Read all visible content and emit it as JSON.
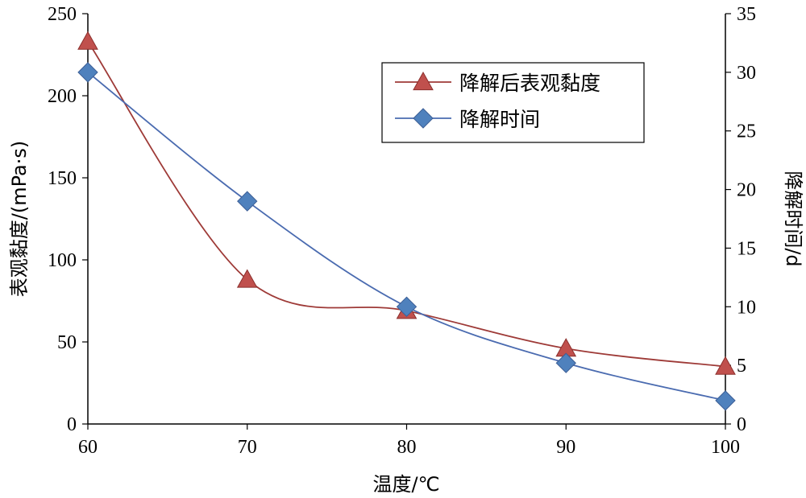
{
  "chart_data": {
    "type": "line",
    "x": [
      60,
      70,
      80,
      90,
      100
    ],
    "xlabel": "温度/℃",
    "xlim": [
      60,
      100
    ],
    "xticks": [
      "60",
      "70",
      "80",
      "90",
      "100"
    ],
    "y_left": {
      "label": "表观黏度/(mPa·s)",
      "lim": [
        0,
        250
      ],
      "ticks": [
        "0",
        "50",
        "100",
        "150",
        "200",
        "250"
      ]
    },
    "y_right": {
      "label": "降解时间/d",
      "lim": [
        0,
        35
      ],
      "ticks": [
        "0",
        "5",
        "10",
        "15",
        "20",
        "25",
        "30",
        "35"
      ]
    },
    "series": [
      {
        "name": "降解后表观黏度",
        "axis": "left",
        "marker": "triangle",
        "color": "#9e3a37",
        "marker_color": "#c0504d",
        "values": [
          233,
          88,
          69,
          46,
          35
        ]
      },
      {
        "name": "降解时间",
        "axis": "right",
        "marker": "diamond",
        "color": "#4a6bb0",
        "marker_color": "#4f81bd",
        "values": [
          30,
          19,
          10,
          5.2,
          2
        ]
      }
    ],
    "grid": false,
    "legend": "top-right"
  }
}
